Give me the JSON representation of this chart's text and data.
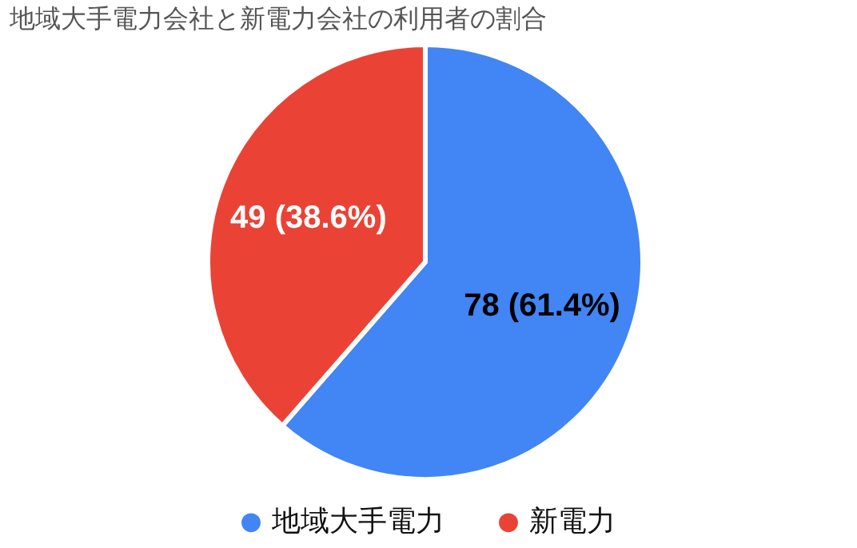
{
  "chart_data": {
    "type": "pie",
    "title": "地域大手電力会社と新電力会社の利用者の割合",
    "categories": [
      "地域大手電力",
      "新電力"
    ],
    "values": [
      78,
      49
    ],
    "colors": [
      "#4285f4",
      "#ea4335"
    ],
    "value_labels": [
      "78 (61.4%)",
      "49 (38.6%)"
    ],
    "legend": "bottom"
  }
}
